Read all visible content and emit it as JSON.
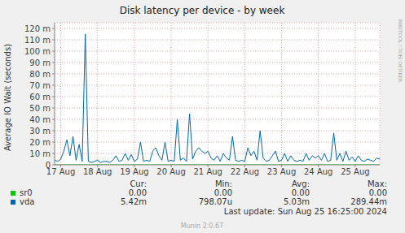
{
  "chart_data": {
    "type": "line",
    "title": "Disk latency per device - by week",
    "y_label": "Average IO Wait (seconds)",
    "categories": [
      null,
      null,
      "17 Aug",
      null,
      null,
      null,
      null,
      null,
      null,
      null,
      null,
      null,
      null,
      null,
      "18 Aug",
      null,
      null,
      null,
      null,
      null,
      null,
      null,
      null,
      null,
      null,
      null,
      "19 Aug",
      null,
      null,
      null,
      null,
      null,
      null,
      null,
      null,
      null,
      null,
      null,
      "20 Aug",
      null,
      null,
      null,
      null,
      null,
      null,
      null,
      null,
      null,
      null,
      null,
      "21 Aug",
      null,
      null,
      null,
      null,
      null,
      null,
      null,
      null,
      null,
      null,
      null,
      "22 Aug",
      null,
      null,
      null,
      null,
      null,
      null,
      null,
      null,
      null,
      null,
      null,
      "23 Aug",
      null,
      null,
      null,
      null,
      null,
      null,
      null,
      null,
      null,
      null,
      null,
      "24 Aug",
      null,
      null,
      null,
      null,
      null,
      null,
      null,
      null,
      null,
      null,
      null,
      "25 Aug",
      null,
      null,
      null,
      null,
      null,
      null,
      null,
      null
    ],
    "series": [
      {
        "name": "sr0",
        "color": "#00cc00",
        "stats": [
          "0.00",
          "0.00",
          "0.00",
          "0.00"
        ],
        "values": [
          0,
          0,
          0,
          0,
          0,
          0,
          0,
          0,
          0,
          0,
          0,
          0,
          0,
          0,
          0,
          0,
          0,
          0,
          0,
          0,
          0,
          0,
          0,
          0,
          0,
          0,
          0,
          0,
          0,
          0,
          0,
          0,
          0,
          0,
          0,
          0,
          0,
          0,
          0,
          0,
          0,
          0,
          0,
          0,
          0,
          0,
          0,
          0,
          0,
          0,
          0,
          0,
          0,
          0,
          0,
          0,
          0,
          0,
          0,
          0,
          0,
          0,
          0,
          0,
          0,
          0,
          0,
          0,
          0,
          0,
          0,
          0,
          0,
          0,
          0,
          0,
          0,
          0,
          0,
          0,
          0,
          0,
          0,
          0,
          0,
          0,
          0,
          0,
          0,
          0,
          0,
          0,
          0,
          0,
          0,
          0,
          0,
          0,
          0,
          0,
          0,
          0,
          0,
          0,
          0,
          0,
          0
        ]
      },
      {
        "name": "vda",
        "color": "#0066b3",
        "stats": [
          "5.42m",
          "798.07u",
          "5.03m",
          "289.44m"
        ],
        "values": [
          0.004,
          0.003,
          0.005,
          0.012,
          0.022,
          0.008,
          0.025,
          0.004,
          0.018,
          0.003,
          0.115,
          0.003,
          0.002,
          0.003,
          0.004,
          0.002,
          0.003,
          0.003,
          0.002,
          0.004,
          0.008,
          0.003,
          0.004,
          0.01,
          0.004,
          0.009,
          0.003,
          0.005,
          0.02,
          0.003,
          0.004,
          0.003,
          0.012,
          0.015,
          0.008,
          0.004,
          0.02,
          0.003,
          0.004,
          0.003,
          0.04,
          0.004,
          0.006,
          0.003,
          0.045,
          0.005,
          0.012,
          0.015,
          0.012,
          0.01,
          0.012,
          0.006,
          0.004,
          0.008,
          0.003,
          0.01,
          0.006,
          0.004,
          0.025,
          0.004,
          0.003,
          0.004,
          0.003,
          0.015,
          0.008,
          0.012,
          0.004,
          0.03,
          0.006,
          0.003,
          0.004,
          0.008,
          0.012,
          0.003,
          0.004,
          0.01,
          0.003,
          0.008,
          0.004,
          0.003,
          0.004,
          0.003,
          0.01,
          0.004,
          0.008,
          0.006,
          0.008,
          0.004,
          0.01,
          0.003,
          0.004,
          0.028,
          0.004,
          0.01,
          0.003,
          0.012,
          0.004,
          0.007,
          0.003,
          0.008,
          0.004,
          0.003,
          0.005,
          0.004,
          0.003,
          0.006,
          0.005
        ]
      }
    ],
    "stats_header": [
      "Cur:",
      "Min:",
      "Avg:",
      "Max:"
    ],
    "ylim": [
      0,
      0.125
    ],
    "yticks": [
      0,
      {
        "value": 0.01,
        "label": "10 m"
      },
      {
        "value": 0.02,
        "label": "20 m"
      },
      {
        "value": 0.03,
        "label": "30 m"
      },
      {
        "value": 0.04,
        "label": "40 m"
      },
      {
        "value": 0.05,
        "label": "50 m"
      },
      {
        "value": 0.06,
        "label": "60 m"
      },
      {
        "value": 0.07,
        "label": "70 m"
      },
      {
        "value": 0.08,
        "label": "80 m"
      },
      {
        "value": 0.09,
        "label": "90 m"
      },
      {
        "value": 0.1,
        "label": "100 m"
      },
      {
        "value": 0.11,
        "label": "110 m"
      },
      {
        "value": 0.12,
        "label": "120 m"
      }
    ],
    "grid": true,
    "annotations": [
      "Last update: Sun Aug 25 16:25:00 2024",
      "Munin 2.0.67",
      "RRDTOOL / TOBI OETIKER"
    ]
  }
}
